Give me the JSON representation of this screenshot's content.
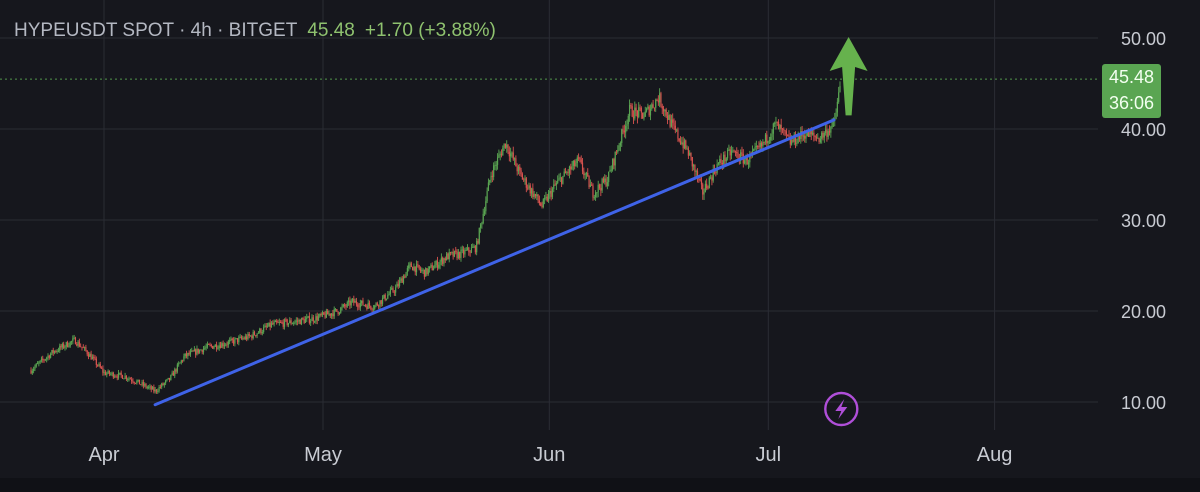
{
  "header": {
    "symbol": "HYPEUSDT SPOT · 4h · BITGET",
    "price": "45.48",
    "change": "+1.70 (+3.88%)"
  },
  "price_tag": {
    "price": "45.48",
    "countdown": "36:06"
  },
  "flash_icon": "lightning-bolt-icon",
  "colors": {
    "background": "#16171d",
    "up": "#5aa552",
    "down": "#d9534f",
    "trendline": "#3f63e8",
    "arrow": "#66b24d",
    "grid": "#2a2c34",
    "flash": "#b04fd9"
  },
  "chart_data": {
    "type": "candlestick",
    "title": "HYPEUSDT SPOT · 4h · BITGET",
    "x_ticks": [
      "Apr",
      "May",
      "Jun",
      "Jul",
      "Aug"
    ],
    "y_ticks": [
      "10.00",
      "20.00",
      "30.00",
      "40.00",
      "50.00"
    ],
    "ylim": [
      8,
      52
    ],
    "grid": true,
    "last_price": 45.48,
    "change": 1.7,
    "change_pct": 3.88,
    "price_path": [
      [
        "2025-03-22",
        13.5
      ],
      [
        "2025-03-25",
        15.5
      ],
      [
        "2025-03-28",
        16.8
      ],
      [
        "2025-03-30",
        15.2
      ],
      [
        "2025-04-01",
        13.2
      ],
      [
        "2025-04-04",
        12.8
      ],
      [
        "2025-04-06",
        12.0
      ],
      [
        "2025-04-08",
        11.2
      ],
      [
        "2025-04-10",
        12.5
      ],
      [
        "2025-04-12",
        15.0
      ],
      [
        "2025-04-15",
        16.0
      ],
      [
        "2025-04-18",
        16.5
      ],
      [
        "2025-04-21",
        17.2
      ],
      [
        "2025-04-24",
        18.5
      ],
      [
        "2025-04-27",
        18.8
      ],
      [
        "2025-04-30",
        19.2
      ],
      [
        "2025-05-03",
        20.0
      ],
      [
        "2025-05-05",
        21.0
      ],
      [
        "2025-05-08",
        20.5
      ],
      [
        "2025-05-11",
        22.5
      ],
      [
        "2025-05-13",
        25.0
      ],
      [
        "2025-05-15",
        24.2
      ],
      [
        "2025-05-18",
        26.0
      ],
      [
        "2025-05-20",
        26.3
      ],
      [
        "2025-05-22",
        27.0
      ],
      [
        "2025-05-24",
        35.0
      ],
      [
        "2025-05-26",
        38.5
      ],
      [
        "2025-05-28",
        35.0
      ],
      [
        "2025-05-31",
        31.5
      ],
      [
        "2025-06-02",
        34.0
      ],
      [
        "2025-06-05",
        36.5
      ],
      [
        "2025-06-07",
        33.0
      ],
      [
        "2025-06-09",
        34.5
      ],
      [
        "2025-06-12",
        42.0
      ],
      [
        "2025-06-14",
        41.5
      ],
      [
        "2025-06-16",
        43.5
      ],
      [
        "2025-06-18",
        40.0
      ],
      [
        "2025-06-20",
        37.5
      ],
      [
        "2025-06-22",
        33.0
      ],
      [
        "2025-06-24",
        36.0
      ],
      [
        "2025-06-26",
        37.5
      ],
      [
        "2025-06-28",
        36.5
      ],
      [
        "2025-06-30",
        38.0
      ],
      [
        "2025-07-02",
        40.5
      ],
      [
        "2025-07-04",
        38.5
      ],
      [
        "2025-07-06",
        39.5
      ],
      [
        "2025-07-08",
        39.0
      ],
      [
        "2025-07-10",
        40.5
      ],
      [
        "2025-07-11",
        45.48
      ]
    ],
    "trendline": {
      "from": [
        "2025-04-08",
        9.7
      ],
      "to": [
        "2025-07-10",
        41.0
      ]
    },
    "candles": {
      "count": 620,
      "colors": {
        "up": "#5aa552",
        "down": "#d9534f"
      }
    },
    "annotations": [
      {
        "type": "arrow-up",
        "date": "2025-07-12",
        "price_from": 41.5,
        "price_to": 50.0
      }
    ]
  }
}
